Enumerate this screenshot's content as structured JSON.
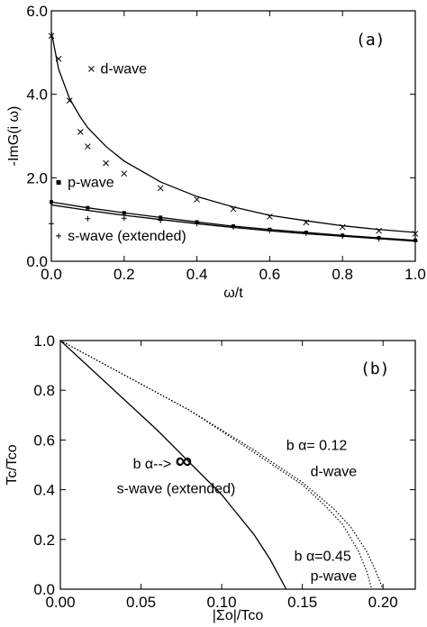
{
  "chart_data": [
    {
      "type": "line",
      "panel_label": "(a)",
      "xlabel": "ω/t",
      "ylabel": "-ImG(i ω)",
      "xlim": [
        0.0,
        1.0
      ],
      "ylim": [
        0.0,
        6.0
      ],
      "xticks": [
        "0.0",
        "0.2",
        "0.4",
        "0.6",
        "0.8",
        "1.0"
      ],
      "yticks": [
        "0.0",
        "2.0",
        "4.0",
        "6.0"
      ],
      "grid": false,
      "series": [
        {
          "name": "d-wave",
          "style": "solid",
          "x": [
            0.0,
            0.02,
            0.05,
            0.08,
            0.1,
            0.15,
            0.2,
            0.3,
            0.4,
            0.5,
            0.6,
            0.7,
            0.8,
            0.9,
            1.0
          ],
          "y": [
            5.5,
            4.6,
            3.9,
            3.45,
            3.2,
            2.75,
            2.4,
            1.9,
            1.55,
            1.3,
            1.1,
            0.97,
            0.85,
            0.76,
            0.69
          ]
        },
        {
          "name": "d-wave markers",
          "style": "cross",
          "x": [
            0.0,
            0.02,
            0.05,
            0.08,
            0.1,
            0.15,
            0.2,
            0.3,
            0.4,
            0.5,
            0.6,
            0.7,
            0.8,
            0.9,
            1.0
          ],
          "y": [
            5.4,
            4.85,
            3.85,
            3.1,
            2.75,
            2.35,
            2.1,
            1.75,
            1.48,
            1.25,
            1.07,
            0.93,
            0.82,
            0.73,
            0.66
          ]
        },
        {
          "name": "p-wave",
          "style": "solid",
          "x": [
            0.0,
            0.1,
            0.2,
            0.3,
            0.4,
            0.5,
            0.6,
            0.7,
            0.8,
            0.9,
            1.0
          ],
          "y": [
            1.42,
            1.28,
            1.16,
            1.05,
            0.94,
            0.84,
            0.76,
            0.69,
            0.62,
            0.56,
            0.5
          ]
        },
        {
          "name": "p-wave markers",
          "style": "square",
          "x": [
            0.0,
            0.1,
            0.2,
            0.3,
            0.4,
            0.5,
            0.6,
            0.7,
            0.8,
            0.9,
            1.0
          ],
          "y": [
            1.42,
            1.28,
            1.16,
            1.05,
            0.94,
            0.84,
            0.76,
            0.69,
            0.62,
            0.56,
            0.5
          ]
        },
        {
          "name": "s-wave (extended)",
          "style": "solid",
          "x": [
            0.0,
            0.1,
            0.2,
            0.3,
            0.4,
            0.5,
            0.6,
            0.7,
            0.8,
            0.9,
            1.0
          ],
          "y": [
            1.35,
            1.22,
            1.1,
            1.0,
            0.9,
            0.81,
            0.73,
            0.66,
            0.6,
            0.54,
            0.48
          ]
        },
        {
          "name": "s-wave markers",
          "style": "plus",
          "x": [
            0.0,
            0.1,
            0.2,
            0.3,
            0.4,
            0.5,
            0.6,
            0.7,
            0.8,
            0.9,
            1.0
          ],
          "y": [
            0.9,
            1.02,
            1.03,
            0.98,
            0.9,
            0.82,
            0.74,
            0.67,
            0.6,
            0.54,
            0.49
          ]
        }
      ],
      "annotations": [
        {
          "text": "d-wave",
          "marker": "cross",
          "x": 0.11,
          "y": 4.5
        },
        {
          "text": "p-wave",
          "marker": "square",
          "x": 0.02,
          "y": 1.78
        },
        {
          "text": "s-wave (extended)",
          "marker": "plus",
          "x": 0.02,
          "y": 0.5
        }
      ]
    },
    {
      "type": "line",
      "panel_label": "(b)",
      "xlabel": "|Σo|/Tco",
      "ylabel": "Tc/Tco",
      "xlim": [
        0.0,
        0.22
      ],
      "ylim": [
        0.0,
        1.0
      ],
      "xticks": [
        "0.00",
        "0.05",
        "0.10",
        "0.15",
        "0.20"
      ],
      "yticks": [
        "0.0",
        "0.2",
        "0.4",
        "0.6",
        "0.8",
        "1.0"
      ],
      "grid": false,
      "series": [
        {
          "name": "s-wave (extended)",
          "style": "solid",
          "x": [
            0.0,
            0.02,
            0.04,
            0.06,
            0.08,
            0.1,
            0.12,
            0.13,
            0.135,
            0.14
          ],
          "y": [
            1.0,
            0.88,
            0.76,
            0.64,
            0.51,
            0.38,
            0.22,
            0.12,
            0.06,
            0.0
          ]
        },
        {
          "name": "d-wave",
          "style": "dotted",
          "x": [
            0.0,
            0.04,
            0.08,
            0.12,
            0.15,
            0.17,
            0.18,
            0.19,
            0.195,
            0.2
          ],
          "y": [
            1.0,
            0.86,
            0.72,
            0.56,
            0.43,
            0.32,
            0.25,
            0.15,
            0.08,
            0.0
          ]
        },
        {
          "name": "p-wave",
          "style": "dotted",
          "x": [
            0.0,
            0.04,
            0.08,
            0.12,
            0.15,
            0.165,
            0.175,
            0.185,
            0.19,
            0.193
          ],
          "y": [
            1.0,
            0.86,
            0.72,
            0.55,
            0.42,
            0.33,
            0.26,
            0.15,
            0.07,
            0.0
          ]
        }
      ],
      "annotations": [
        {
          "text": "b α--> ",
          "symbol": "∞",
          "x": 0.045,
          "y": 0.485
        },
        {
          "text": "s-wave (extended)",
          "x": 0.035,
          "y": 0.385
        },
        {
          "text": "b α= 0.12",
          "x": 0.14,
          "y": 0.56
        },
        {
          "text": "d-wave",
          "x": 0.155,
          "y": 0.455
        },
        {
          "text": "b α=0.45",
          "x": 0.145,
          "y": 0.115
        },
        {
          "text": "p-wave",
          "x": 0.155,
          "y": 0.035
        }
      ]
    }
  ]
}
